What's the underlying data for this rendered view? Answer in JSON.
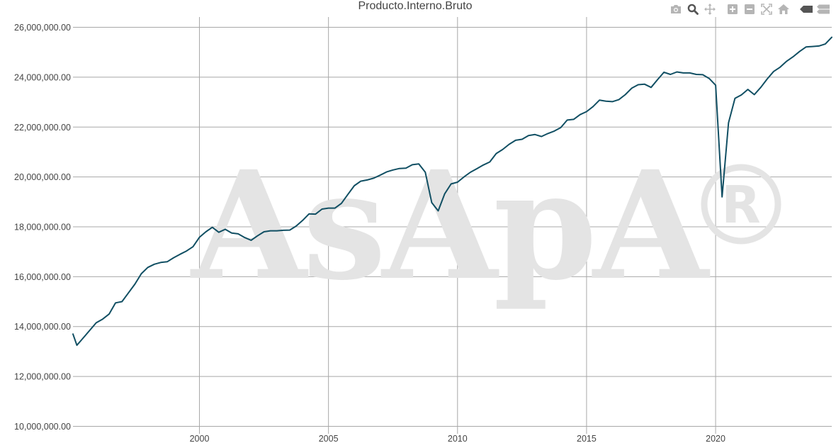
{
  "modebar": {
    "icons": [
      "camera-icon",
      "zoom-icon",
      "pan-icon",
      "zoom-in-icon",
      "zoom-out-icon",
      "autoscale-icon",
      "reset-axes-icon",
      "hover-closest-icon",
      "hover-compare-icon"
    ],
    "icon_color": "#b5b5b5",
    "active_icon_color": "#555555"
  },
  "watermark": {
    "text": "AsApA",
    "mark": "R"
  },
  "chart_data": {
    "type": "line",
    "title": "Producto.Interno.Bruto",
    "xlabel": "",
    "ylabel": "",
    "xlim": [
      1995.1,
      2024.5
    ],
    "ylim": [
      9700000,
      26300000
    ],
    "grid": true,
    "line_color": "#114f63",
    "x_ticks": [
      2000,
      2005,
      2010,
      2015,
      2020
    ],
    "x_tick_labels": [
      "2000",
      "2005",
      "2010",
      "2015",
      "2020"
    ],
    "y_ticks": [
      10000000,
      12000000,
      14000000,
      16000000,
      18000000,
      20000000,
      22000000,
      24000000,
      26000000
    ],
    "y_tick_labels": [
      "10,000,000.00",
      "12,000,000.00",
      "14,000,000.00",
      "16,000,000.00",
      "18,000,000.00",
      "20,000,000.00",
      "22,000,000.00",
      "24,000,000.00",
      "26,000,000.00"
    ],
    "series": [
      {
        "x": [
          1995.1,
          1995.25,
          1995.5,
          1995.75,
          1996.0,
          1996.25,
          1996.5,
          1996.75,
          1997.0,
          1997.25,
          1997.5,
          1997.75,
          1998.0,
          1998.25,
          1998.5,
          1998.75,
          1999.0,
          1999.25,
          1999.5,
          1999.75,
          2000.0,
          2000.25,
          2000.5,
          2000.75,
          2001.0,
          2001.25,
          2001.5,
          2001.75,
          2002.0,
          2002.25,
          2002.5,
          2002.75,
          2003.0,
          2003.25,
          2003.5,
          2003.75,
          2004.0,
          2004.25,
          2004.5,
          2004.75,
          2005.0,
          2005.25,
          2005.5,
          2005.75,
          2006.0,
          2006.25,
          2006.5,
          2006.75,
          2007.0,
          2007.25,
          2007.5,
          2007.75,
          2008.0,
          2008.25,
          2008.5,
          2008.75,
          2009.0,
          2009.25,
          2009.5,
          2009.75,
          2010.0,
          2010.25,
          2010.5,
          2010.75,
          2011.0,
          2011.25,
          2011.5,
          2011.75,
          2012.0,
          2012.25,
          2012.5,
          2012.75,
          2013.0,
          2013.25,
          2013.5,
          2013.75,
          2014.0,
          2014.25,
          2014.5,
          2014.75,
          2015.0,
          2015.25,
          2015.5,
          2015.75,
          2016.0,
          2016.25,
          2016.5,
          2016.75,
          2017.0,
          2017.25,
          2017.5,
          2017.75,
          2018.0,
          2018.25,
          2018.5,
          2018.75,
          2019.0,
          2019.25,
          2019.5,
          2019.75,
          2020.0,
          2020.25,
          2020.5,
          2020.75,
          2021.0,
          2021.25,
          2021.5,
          2021.75,
          2022.0,
          2022.25,
          2022.5,
          2022.75,
          2023.0,
          2023.25,
          2023.5,
          2023.75,
          2024.0,
          2024.25,
          2024.5
        ],
        "y": [
          13700000,
          13250000,
          13550000,
          13850000,
          14150000,
          14300000,
          14500000,
          14950000,
          15000000,
          15350000,
          15700000,
          16120000,
          16370000,
          16500000,
          16570000,
          16600000,
          16760000,
          16900000,
          17030000,
          17200000,
          17580000,
          17800000,
          17980000,
          17780000,
          17900000,
          17750000,
          17720000,
          17570000,
          17460000,
          17640000,
          17800000,
          17840000,
          17840000,
          17860000,
          17870000,
          18030000,
          18260000,
          18520000,
          18510000,
          18710000,
          18750000,
          18750000,
          18940000,
          19300000,
          19650000,
          19830000,
          19880000,
          19950000,
          20070000,
          20200000,
          20280000,
          20340000,
          20350000,
          20490000,
          20520000,
          20190000,
          18970000,
          18640000,
          19320000,
          19720000,
          19790000,
          20000000,
          20190000,
          20330000,
          20480000,
          20600000,
          20940000,
          21100000,
          21310000,
          21470000,
          21510000,
          21660000,
          21700000,
          21620000,
          21740000,
          21840000,
          21980000,
          22280000,
          22310000,
          22500000,
          22620000,
          22820000,
          23080000,
          23040000,
          23020000,
          23100000,
          23300000,
          23560000,
          23700000,
          23720000,
          23590000,
          23900000,
          24200000,
          24110000,
          24210000,
          24170000,
          24170000,
          24110000,
          24100000,
          23950000,
          23680000,
          19200000,
          22170000,
          23150000,
          23290000,
          23510000,
          23300000,
          23590000,
          23930000,
          24230000,
          24400000,
          24640000,
          24820000,
          25030000,
          25210000,
          25230000,
          25250000,
          25330000,
          25600000
        ]
      }
    ]
  }
}
